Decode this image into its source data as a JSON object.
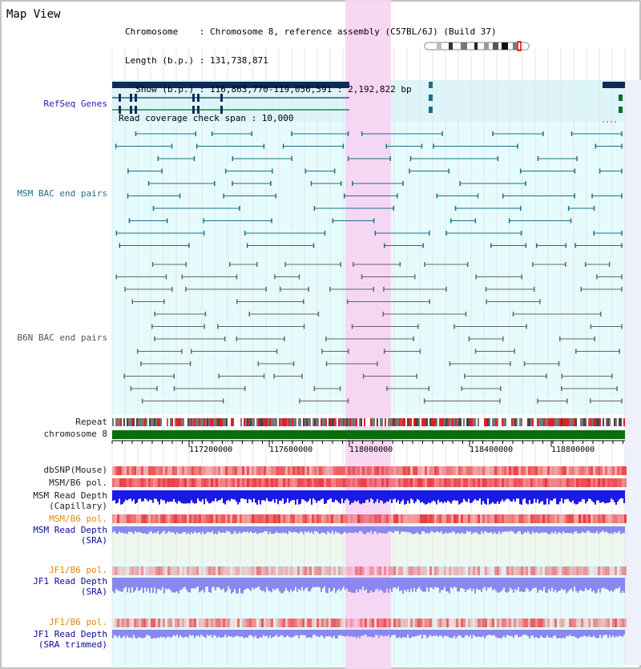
{
  "header": {
    "view_title": "Map View",
    "info_lines": [
      "Chromosome    : Chromosome 8, reference assembly (C57BL/6J) (Build 37)",
      "Length (b.p.) : 131,738,871",
      "  Show (b.p.) : 116,863,770-119,056,591 : 2,192,822 bp",
      "Read coverage check span : 10,000"
    ]
  },
  "tracks": {
    "refseq": "RefSeq Genes",
    "msm_bac": "MSM BAC end pairs",
    "b6n_bac": "B6N BAC end pairs",
    "repeat": "Repeat",
    "chromosome": "chromosome 8",
    "dbsnp": "dbSNP(Mouse)",
    "msm_b6_pol_1": "MSM/B6 pol.",
    "msm_read_cap_1": "MSM Read Depth",
    "msm_read_cap_2": "(Capillary)",
    "msm_b6_pol_2": "MSM/B6 pol.",
    "msm_read_sra_1": "MSM Read Depth",
    "msm_read_sra_2": "(SRA)",
    "jf1_b6_pol_1": "JF1/B6 pol.",
    "jf1_read_sra_1": "JF1 Read Depth",
    "jf1_read_sra_2": "(SRA)",
    "jf1_b6_pol_2": "JF1/B6 pol.",
    "jf1_read_trim_1": "JF1 Read Depth",
    "jf1_read_trim_2": "(SRA trimmed)"
  },
  "axis": {
    "ticks": [
      "117200000",
      "117600000",
      "118000000",
      "118400000",
      "118800000"
    ]
  },
  "colors": {
    "highlight": "#f7d3f2",
    "cyan_bg": "#ddf5f8",
    "gene": "#0e2a5a",
    "msm_pair": "#1c6f8a",
    "b6n_pair": "#666666",
    "chromosome_bar": "#0a6e0a",
    "read_blue": "#1a1ae6",
    "read_lightblue": "#8888f0",
    "snp_red": "#e8393c"
  }
}
